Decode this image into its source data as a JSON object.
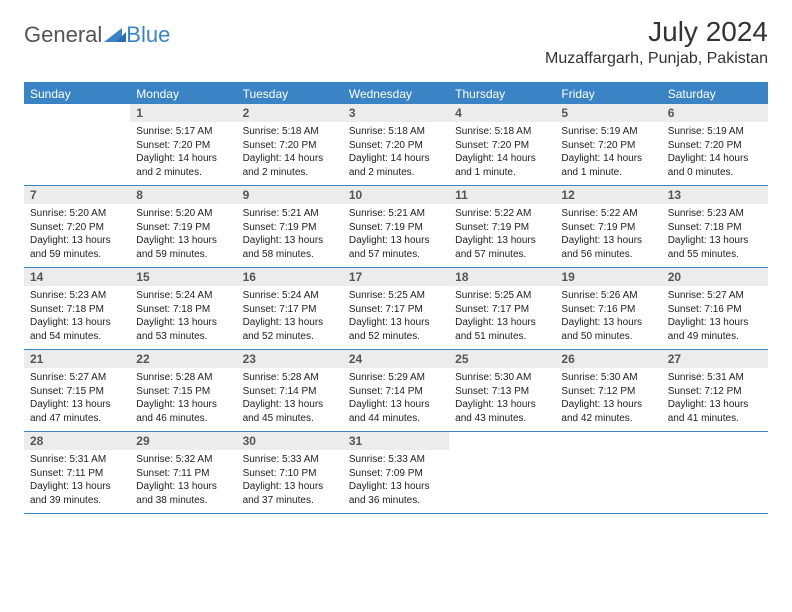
{
  "brand": {
    "part1": "General",
    "part2": "Blue",
    "accent": "#3a84c6"
  },
  "title": "July 2024",
  "location": "Muzaffargarh, Punjab, Pakistan",
  "day_labels": [
    "Sunday",
    "Monday",
    "Tuesday",
    "Wednesday",
    "Thursday",
    "Friday",
    "Saturday"
  ],
  "colors": {
    "header_bg": "#3a84c6",
    "header_text": "#ffffff",
    "daynum_bg": "#ececec",
    "daynum_text": "#555555",
    "border": "#3a84c6",
    "body_text": "#222222"
  },
  "typography": {
    "title_fontsize": 28,
    "location_fontsize": 16,
    "daylabel_fontsize": 12,
    "daynum_fontsize": 12,
    "body_fontsize": 10
  },
  "weeks": [
    [
      {
        "n": "",
        "sr": "",
        "ss": "",
        "dl": ""
      },
      {
        "n": "1",
        "sr": "Sunrise: 5:17 AM",
        "ss": "Sunset: 7:20 PM",
        "dl": "Daylight: 14 hours and 2 minutes."
      },
      {
        "n": "2",
        "sr": "Sunrise: 5:18 AM",
        "ss": "Sunset: 7:20 PM",
        "dl": "Daylight: 14 hours and 2 minutes."
      },
      {
        "n": "3",
        "sr": "Sunrise: 5:18 AM",
        "ss": "Sunset: 7:20 PM",
        "dl": "Daylight: 14 hours and 2 minutes."
      },
      {
        "n": "4",
        "sr": "Sunrise: 5:18 AM",
        "ss": "Sunset: 7:20 PM",
        "dl": "Daylight: 14 hours and 1 minute."
      },
      {
        "n": "5",
        "sr": "Sunrise: 5:19 AM",
        "ss": "Sunset: 7:20 PM",
        "dl": "Daylight: 14 hours and 1 minute."
      },
      {
        "n": "6",
        "sr": "Sunrise: 5:19 AM",
        "ss": "Sunset: 7:20 PM",
        "dl": "Daylight: 14 hours and 0 minutes."
      }
    ],
    [
      {
        "n": "7",
        "sr": "Sunrise: 5:20 AM",
        "ss": "Sunset: 7:20 PM",
        "dl": "Daylight: 13 hours and 59 minutes."
      },
      {
        "n": "8",
        "sr": "Sunrise: 5:20 AM",
        "ss": "Sunset: 7:19 PM",
        "dl": "Daylight: 13 hours and 59 minutes."
      },
      {
        "n": "9",
        "sr": "Sunrise: 5:21 AM",
        "ss": "Sunset: 7:19 PM",
        "dl": "Daylight: 13 hours and 58 minutes."
      },
      {
        "n": "10",
        "sr": "Sunrise: 5:21 AM",
        "ss": "Sunset: 7:19 PM",
        "dl": "Daylight: 13 hours and 57 minutes."
      },
      {
        "n": "11",
        "sr": "Sunrise: 5:22 AM",
        "ss": "Sunset: 7:19 PM",
        "dl": "Daylight: 13 hours and 57 minutes."
      },
      {
        "n": "12",
        "sr": "Sunrise: 5:22 AM",
        "ss": "Sunset: 7:19 PM",
        "dl": "Daylight: 13 hours and 56 minutes."
      },
      {
        "n": "13",
        "sr": "Sunrise: 5:23 AM",
        "ss": "Sunset: 7:18 PM",
        "dl": "Daylight: 13 hours and 55 minutes."
      }
    ],
    [
      {
        "n": "14",
        "sr": "Sunrise: 5:23 AM",
        "ss": "Sunset: 7:18 PM",
        "dl": "Daylight: 13 hours and 54 minutes."
      },
      {
        "n": "15",
        "sr": "Sunrise: 5:24 AM",
        "ss": "Sunset: 7:18 PM",
        "dl": "Daylight: 13 hours and 53 minutes."
      },
      {
        "n": "16",
        "sr": "Sunrise: 5:24 AM",
        "ss": "Sunset: 7:17 PM",
        "dl": "Daylight: 13 hours and 52 minutes."
      },
      {
        "n": "17",
        "sr": "Sunrise: 5:25 AM",
        "ss": "Sunset: 7:17 PM",
        "dl": "Daylight: 13 hours and 52 minutes."
      },
      {
        "n": "18",
        "sr": "Sunrise: 5:25 AM",
        "ss": "Sunset: 7:17 PM",
        "dl": "Daylight: 13 hours and 51 minutes."
      },
      {
        "n": "19",
        "sr": "Sunrise: 5:26 AM",
        "ss": "Sunset: 7:16 PM",
        "dl": "Daylight: 13 hours and 50 minutes."
      },
      {
        "n": "20",
        "sr": "Sunrise: 5:27 AM",
        "ss": "Sunset: 7:16 PM",
        "dl": "Daylight: 13 hours and 49 minutes."
      }
    ],
    [
      {
        "n": "21",
        "sr": "Sunrise: 5:27 AM",
        "ss": "Sunset: 7:15 PM",
        "dl": "Daylight: 13 hours and 47 minutes."
      },
      {
        "n": "22",
        "sr": "Sunrise: 5:28 AM",
        "ss": "Sunset: 7:15 PM",
        "dl": "Daylight: 13 hours and 46 minutes."
      },
      {
        "n": "23",
        "sr": "Sunrise: 5:28 AM",
        "ss": "Sunset: 7:14 PM",
        "dl": "Daylight: 13 hours and 45 minutes."
      },
      {
        "n": "24",
        "sr": "Sunrise: 5:29 AM",
        "ss": "Sunset: 7:14 PM",
        "dl": "Daylight: 13 hours and 44 minutes."
      },
      {
        "n": "25",
        "sr": "Sunrise: 5:30 AM",
        "ss": "Sunset: 7:13 PM",
        "dl": "Daylight: 13 hours and 43 minutes."
      },
      {
        "n": "26",
        "sr": "Sunrise: 5:30 AM",
        "ss": "Sunset: 7:12 PM",
        "dl": "Daylight: 13 hours and 42 minutes."
      },
      {
        "n": "27",
        "sr": "Sunrise: 5:31 AM",
        "ss": "Sunset: 7:12 PM",
        "dl": "Daylight: 13 hours and 41 minutes."
      }
    ],
    [
      {
        "n": "28",
        "sr": "Sunrise: 5:31 AM",
        "ss": "Sunset: 7:11 PM",
        "dl": "Daylight: 13 hours and 39 minutes."
      },
      {
        "n": "29",
        "sr": "Sunrise: 5:32 AM",
        "ss": "Sunset: 7:11 PM",
        "dl": "Daylight: 13 hours and 38 minutes."
      },
      {
        "n": "30",
        "sr": "Sunrise: 5:33 AM",
        "ss": "Sunset: 7:10 PM",
        "dl": "Daylight: 13 hours and 37 minutes."
      },
      {
        "n": "31",
        "sr": "Sunrise: 5:33 AM",
        "ss": "Sunset: 7:09 PM",
        "dl": "Daylight: 13 hours and 36 minutes."
      },
      {
        "n": "",
        "sr": "",
        "ss": "",
        "dl": ""
      },
      {
        "n": "",
        "sr": "",
        "ss": "",
        "dl": ""
      },
      {
        "n": "",
        "sr": "",
        "ss": "",
        "dl": ""
      }
    ]
  ]
}
